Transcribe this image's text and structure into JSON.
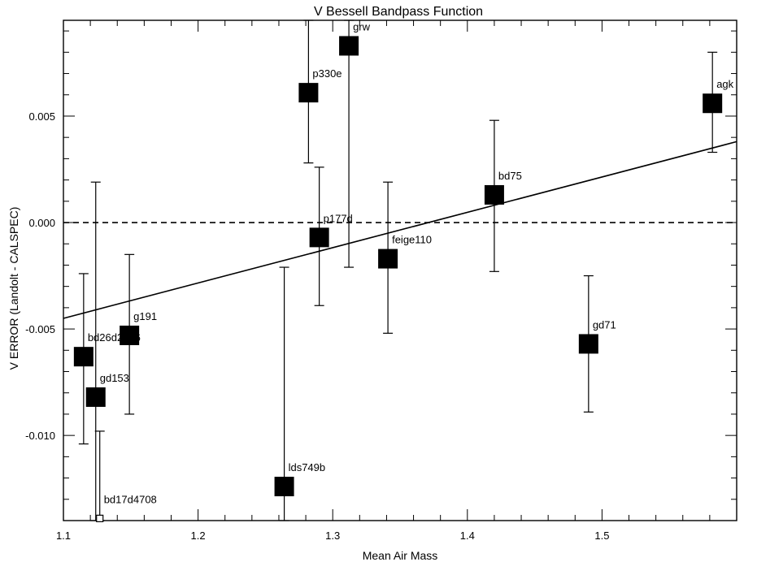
{
  "chart_data": {
    "type": "scatter",
    "title": "V Bessell Bandpass Function",
    "xlabel": "Mean Air Mass",
    "ylabel": "V ERROR (Landolt - CALSPEC)",
    "xlim": [
      1.1,
      1.6
    ],
    "ylim": [
      -0.014,
      0.0095
    ],
    "x_ticks": [
      {
        "value": 1.1,
        "label": "1.1"
      },
      {
        "value": 1.2,
        "label": "1.2"
      },
      {
        "value": 1.3,
        "label": "1.3"
      },
      {
        "value": 1.4,
        "label": "1.4"
      },
      {
        "value": 1.5,
        "label": "1.5"
      }
    ],
    "y_ticks": [
      {
        "value": -0.01,
        "label": "-0.010"
      },
      {
        "value": -0.005,
        "label": "-0.005"
      },
      {
        "value": 0.0,
        "label": "0.000"
      },
      {
        "value": 0.005,
        "label": "0.005"
      }
    ],
    "points": [
      {
        "label": "bd26d2606",
        "x": 1.115,
        "y": -0.0063,
        "err_low": -0.0104,
        "err_high": -0.0024
      },
      {
        "label": "gd153",
        "x": 1.124,
        "y": -0.0082,
        "err_low": -0.014,
        "err_high": 0.0019
      },
      {
        "label": "bd17d4708",
        "x": 1.127,
        "y": -0.0139,
        "err_low": -0.014,
        "err_high": -0.0098,
        "marker": "small"
      },
      {
        "label": "g191",
        "x": 1.149,
        "y": -0.0053,
        "err_low": -0.009,
        "err_high": -0.0015
      },
      {
        "label": "lds749b",
        "x": 1.264,
        "y": -0.0124,
        "err_low": -0.014,
        "err_high": -0.0021
      },
      {
        "label": "p330e",
        "x": 1.282,
        "y": 0.0061,
        "err_low": 0.0028,
        "err_high": 0.0095
      },
      {
        "label": "p177d",
        "x": 1.29,
        "y": -0.0007,
        "err_low": -0.0039,
        "err_high": 0.0026
      },
      {
        "label": "grw",
        "x": 1.312,
        "y": 0.0083,
        "err_low": -0.0021,
        "err_high": 0.0095
      },
      {
        "label": "feige110",
        "x": 1.341,
        "y": -0.0017,
        "err_low": -0.0052,
        "err_high": 0.0019
      },
      {
        "label": "bd75",
        "x": 1.42,
        "y": 0.0013,
        "err_low": -0.0023,
        "err_high": 0.0048
      },
      {
        "label": "gd71",
        "x": 1.49,
        "y": -0.0057,
        "err_low": -0.0089,
        "err_high": -0.0025
      },
      {
        "label": "agk",
        "x": 1.582,
        "y": 0.0056,
        "err_low": 0.0033,
        "err_high": 0.008
      }
    ],
    "fit_line": {
      "x": [
        1.1,
        1.6
      ],
      "y": [
        -0.0045,
        0.0038
      ]
    },
    "reference_line": {
      "y": 0.0,
      "style": "dashed"
    },
    "grid": false,
    "legend": "none"
  }
}
